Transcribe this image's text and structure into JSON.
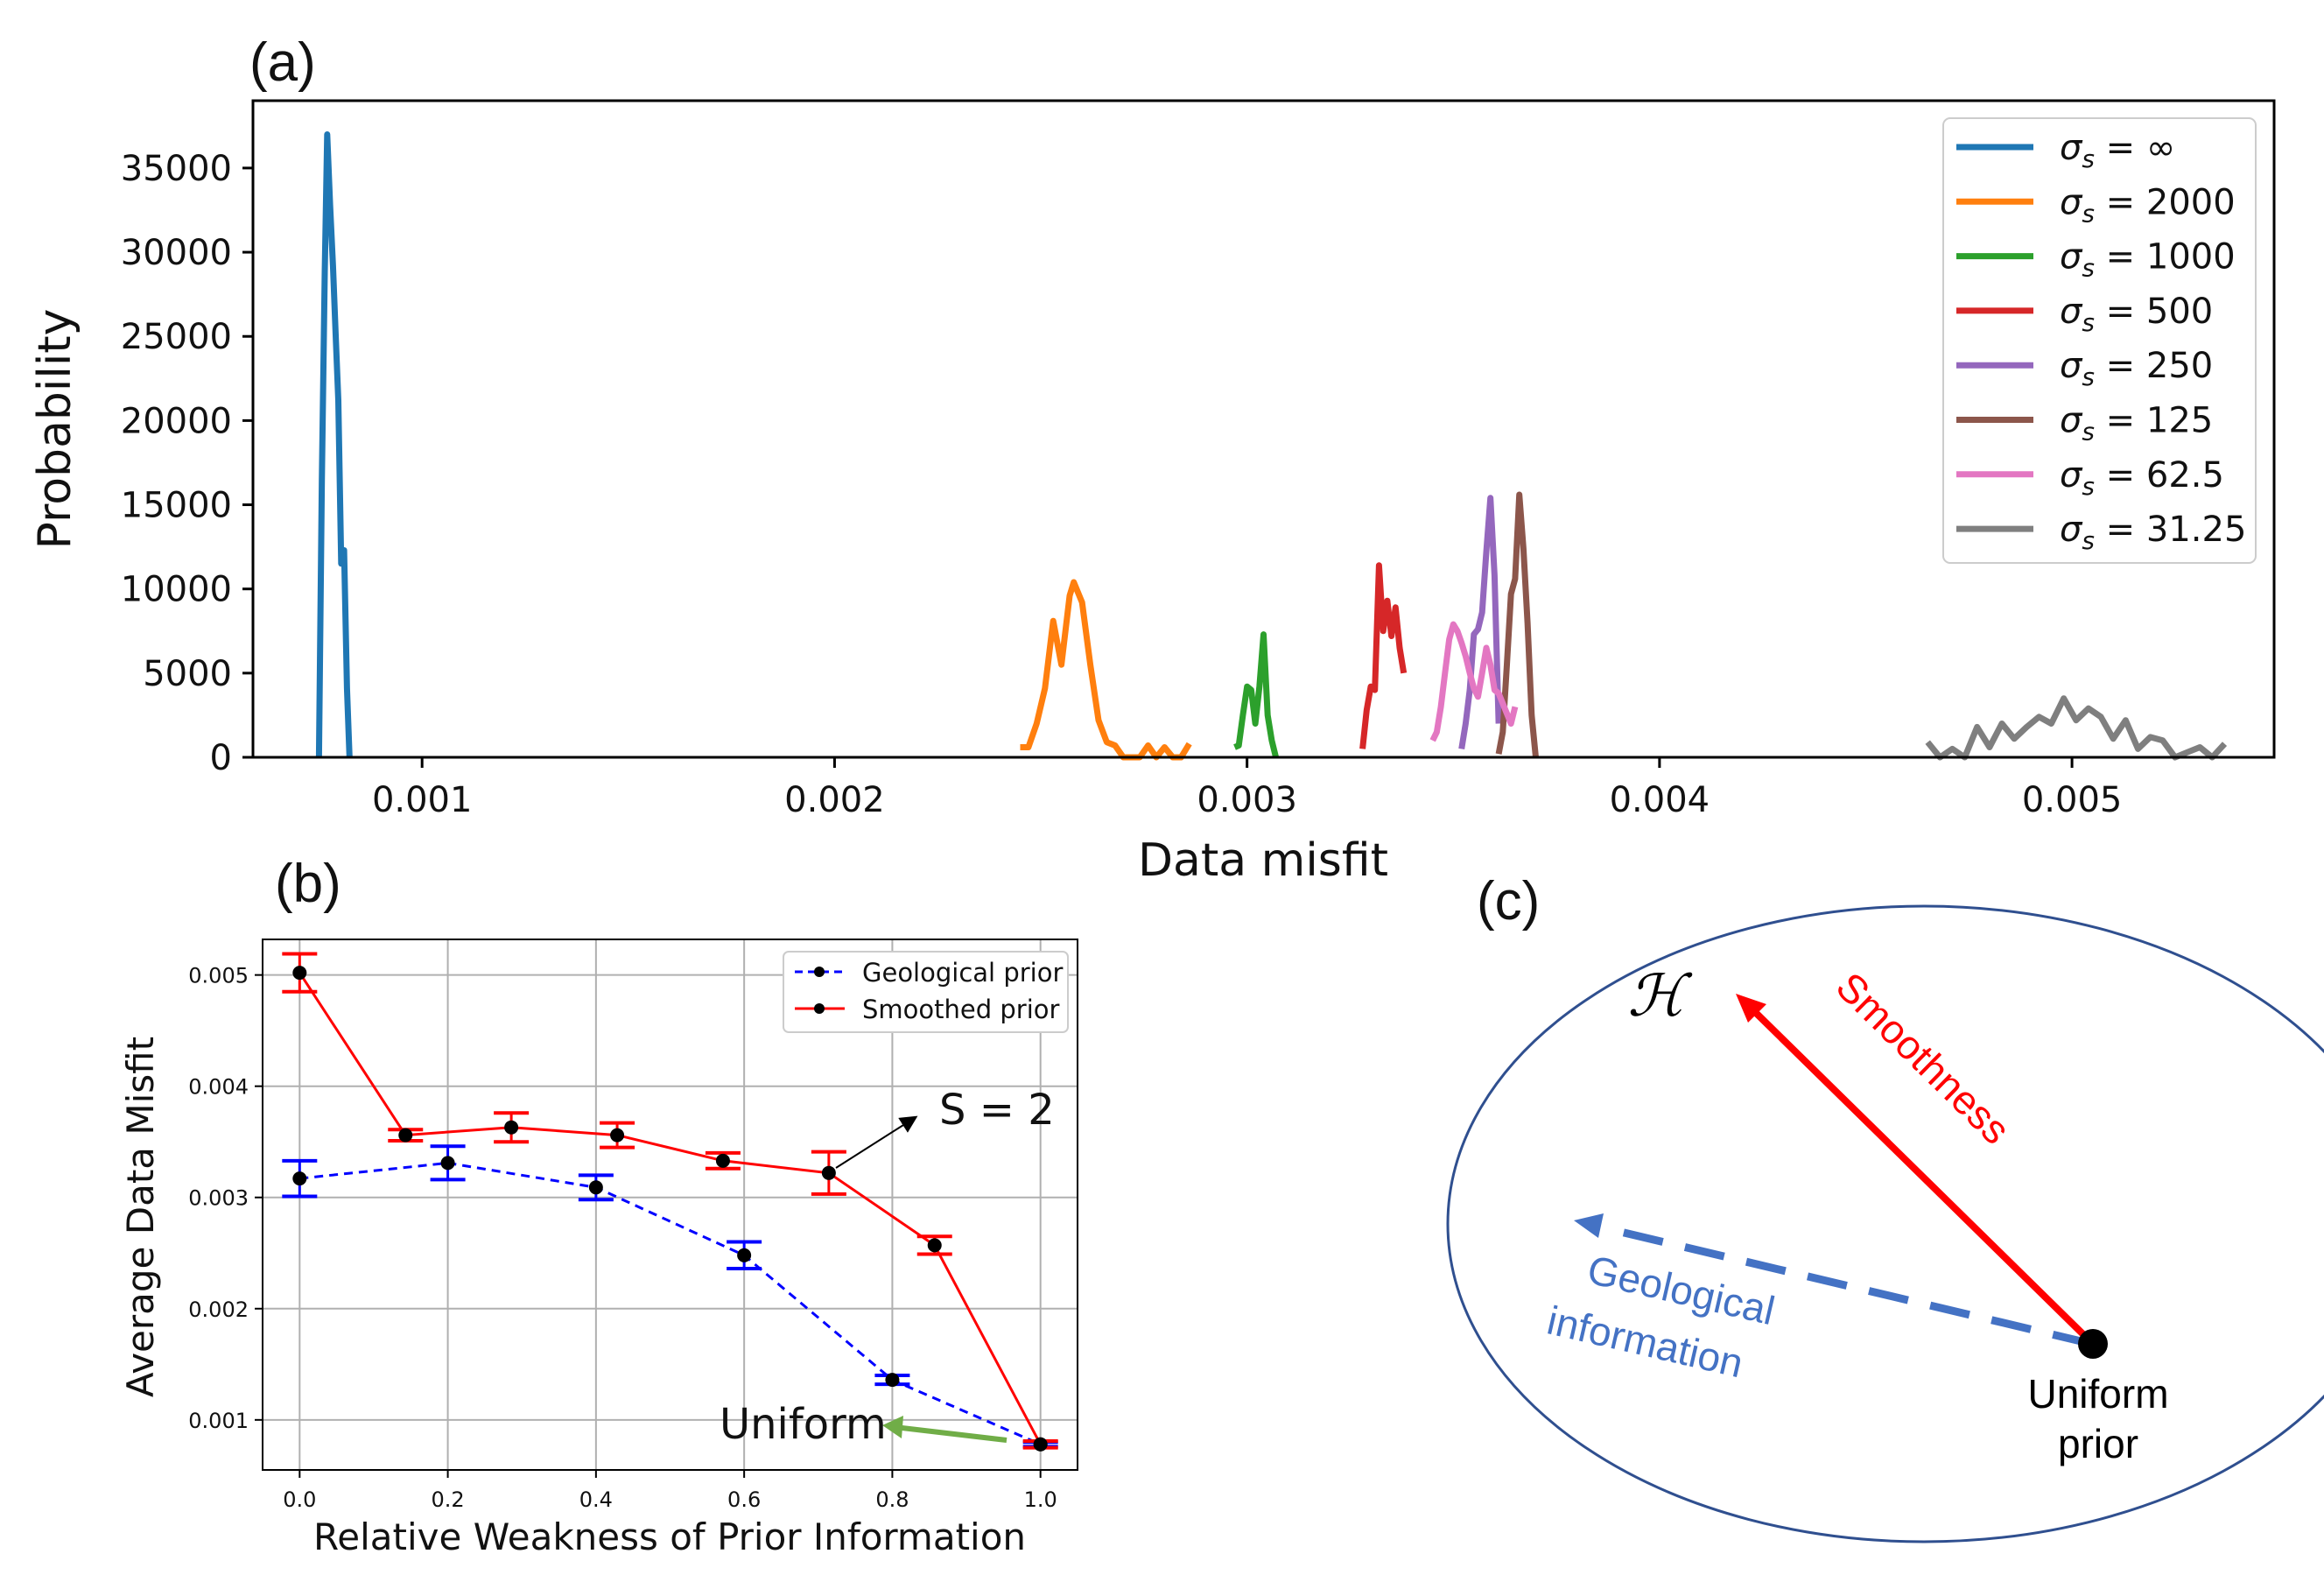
{
  "panel_labels": [
    "(a)",
    "(b)",
    "(c)"
  ],
  "chart_data": [
    {
      "panel": "(a)",
      "type": "line",
      "xlabel": "Data misfit",
      "ylabel": "Probability",
      "xlim": [
        0.00059,
        0.00549
      ],
      "ylim": [
        0,
        39000
      ],
      "xticks": [
        0.001,
        0.002,
        0.003,
        0.004,
        0.005
      ],
      "xtick_labels": [
        "0.001",
        "0.002",
        "0.003",
        "0.004",
        "0.005"
      ],
      "yticks": [
        0,
        5000,
        10000,
        15000,
        20000,
        25000,
        30000,
        35000
      ],
      "ytick_labels": [
        "0",
        "5000",
        "10000",
        "15000",
        "20000",
        "25000",
        "30000",
        "35000"
      ],
      "grid": false,
      "legend_position": "upper right",
      "series": [
        {
          "name": "σs = ∞",
          "sub": "s",
          "value": "∞",
          "color": "#1f77b4",
          "x": [
            0.00075,
            0.000757,
            0.000764,
            0.00077,
            0.000777,
            0.000784,
            0.000791,
            0.000797,
            0.000804,
            0.000811,
            0.000818,
            0.000824
          ],
          "y": [
            0,
            16500,
            28800,
            37000,
            32800,
            29200,
            24800,
            21200,
            11500,
            12300,
            4100,
            0
          ]
        },
        {
          "name": "σs = 2000",
          "sub": "s",
          "value": "2000",
          "color": "#ff7f0e",
          "x": [
            0.00245,
            0.00247,
            0.00249,
            0.00251,
            0.00253,
            0.00255,
            0.00257,
            0.00258,
            0.0026,
            0.00262,
            0.00264,
            0.00266,
            0.00268,
            0.0027,
            0.00272,
            0.00274,
            0.00276,
            0.00278,
            0.0028,
            0.00282,
            0.00284,
            0.00286
          ],
          "y": [
            600,
            600,
            2000,
            4100,
            8100,
            5500,
            9600,
            10400,
            9200,
            5500,
            2200,
            900,
            700,
            0,
            0,
            0,
            700,
            0,
            600,
            0,
            0,
            800
          ]
        },
        {
          "name": "σs = 1000",
          "sub": "s",
          "value": "1000",
          "color": "#2ca02c",
          "x": [
            0.00297,
            0.00298,
            0.00299,
            0.003,
            0.00301,
            0.00302,
            0.00303,
            0.00304,
            0.00305,
            0.00306,
            0.00307
          ],
          "y": [
            600,
            700,
            2500,
            4200,
            4000,
            2000,
            4200,
            7300,
            2500,
            1000,
            0
          ]
        },
        {
          "name": "σs = 500",
          "sub": "s",
          "value": "500",
          "color": "#d62728",
          "x": [
            0.00328,
            0.00329,
            0.0033,
            0.00331,
            0.00332,
            0.00333,
            0.00334,
            0.00335,
            0.00336,
            0.00337,
            0.00338
          ],
          "y": [
            500,
            2800,
            4200,
            4000,
            11400,
            7500,
            9300,
            7200,
            8900,
            6500,
            5000
          ]
        },
        {
          "name": "σs = 250",
          "sub": "s",
          "value": "250",
          "color": "#9467bd",
          "x": [
            0.00352,
            0.00353,
            0.00354,
            0.00355,
            0.00356,
            0.00357,
            0.00358,
            0.00359,
            0.0036,
            0.00361
          ],
          "y": [
            500,
            2000,
            4000,
            7300,
            7600,
            8600,
            12200,
            15400,
            10800,
            2000
          ]
        },
        {
          "name": "σs = 125",
          "sub": "s",
          "value": "125",
          "color": "#8c564b",
          "x": [
            0.00361,
            0.00362,
            0.00363,
            0.00364,
            0.00365,
            0.00366,
            0.00367,
            0.00368,
            0.00369,
            0.0037
          ],
          "y": [
            200,
            1500,
            5500,
            9700,
            10600,
            15600,
            12400,
            8000,
            2500,
            0
          ]
        },
        {
          "name": "σs = 62.5",
          "sub": "s",
          "value": "62.5",
          "color": "#e377c2",
          "x": [
            0.00345,
            0.00346,
            0.00347,
            0.00348,
            0.00349,
            0.0035,
            0.00351,
            0.00352,
            0.00353,
            0.00354,
            0.00355,
            0.00356,
            0.00357,
            0.00358,
            0.00359,
            0.0036,
            0.00361,
            0.00362,
            0.00363,
            0.00364,
            0.00365
          ],
          "y": [
            1000,
            1500,
            3000,
            5000,
            7000,
            7900,
            7500,
            6800,
            6000,
            5000,
            4100,
            3600,
            5000,
            6500,
            5500,
            4000,
            3800,
            3200,
            2600,
            2000,
            3000
          ]
        },
        {
          "name": "σs = 31.25",
          "sub": "s",
          "value": "31.25",
          "color": "#7f7f7f",
          "x": [
            0.00465,
            0.00468,
            0.00471,
            0.00474,
            0.00477,
            0.0048,
            0.00483,
            0.00486,
            0.00489,
            0.00492,
            0.00495,
            0.00498,
            0.00501,
            0.00504,
            0.00507,
            0.0051,
            0.00513,
            0.00516,
            0.00519,
            0.00522,
            0.00525,
            0.00528,
            0.00531,
            0.00534,
            0.00537
          ],
          "y": [
            900,
            0,
            500,
            0,
            1800,
            600,
            2000,
            1100,
            1800,
            2400,
            2000,
            3500,
            2200,
            2900,
            2400,
            1100,
            2200,
            500,
            1200,
            1000,
            0,
            300,
            600,
            0,
            800
          ]
        }
      ]
    },
    {
      "panel": "(b)",
      "type": "line",
      "xlabel": "Relative Weakness of Prior Information",
      "ylabel": "Average Data Misfit",
      "xlim": [
        -0.05,
        1.05
      ],
      "ylim": [
        0.00055,
        0.00532
      ],
      "xticks": [
        0.0,
        0.2,
        0.4,
        0.6,
        0.8,
        1.0
      ],
      "xtick_labels": [
        "0.0",
        "0.2",
        "0.4",
        "0.6",
        "0.8",
        "1.0"
      ],
      "yticks": [
        0.001,
        0.002,
        0.003,
        0.004,
        0.005
      ],
      "ytick_labels": [
        "0.001",
        "0.002",
        "0.003",
        "0.004",
        "0.005"
      ],
      "grid": true,
      "legend_position": "upper right",
      "series": [
        {
          "name": "Geological prior",
          "color": "#0000ff",
          "style": "dashed",
          "x": [
            0.0,
            0.2,
            0.4,
            0.6,
            0.8,
            1.0
          ],
          "y": [
            0.00317,
            0.00331,
            0.00309,
            0.00248,
            0.00136,
            0.00078
          ],
          "err": [
            0.00016,
            0.00015,
            0.00011,
            0.00012,
            4e-05,
            2e-05
          ]
        },
        {
          "name": "Smoothed prior",
          "color": "#ff0000",
          "style": "solid",
          "x": [
            0.0,
            0.1429,
            0.2857,
            0.4286,
            0.5714,
            0.7143,
            0.8571,
            1.0
          ],
          "y": [
            0.00502,
            0.00356,
            0.00363,
            0.00356,
            0.00333,
            0.00322,
            0.00257,
            0.00078
          ],
          "err": [
            0.00017,
            5e-05,
            0.00013,
            0.00011,
            7e-05,
            0.00019,
            8e-05,
            3e-05
          ]
        }
      ],
      "annotations": [
        {
          "text": "S = 2"
        },
        {
          "text": "Uniform"
        }
      ]
    }
  ],
  "diagram_c": {
    "label_h": "ℋ",
    "smoothness": "Smoothness",
    "geo_line1": "Geological",
    "geo_line2": "information",
    "uniform_line1": "Uniform",
    "uniform_line2": "prior",
    "colors": {
      "smooth": "#ff0000",
      "geo": "#4472c4",
      "ellipse": "#2f4f8f"
    }
  }
}
